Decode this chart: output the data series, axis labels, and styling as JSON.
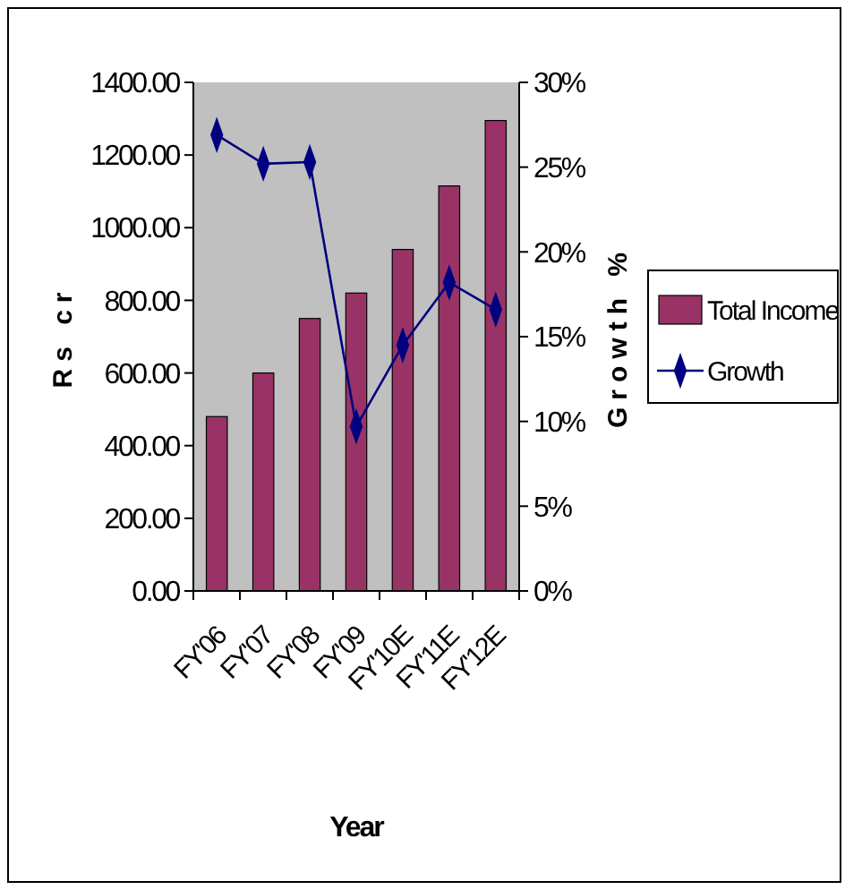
{
  "chart_data": {
    "type": "bar",
    "xlabel": "Year",
    "ylabel": "Rs cr",
    "y2label": "Growth %",
    "categories": [
      "FY'06",
      "FY'07",
      "FY'08",
      "FY'09",
      "FY'10E",
      "FY'11E",
      "FY'12E"
    ],
    "series": [
      {
        "name": "Total Income",
        "color": "#993366",
        "values": [
          480,
          600,
          750,
          820,
          940,
          1115,
          1295
        ]
      },
      {
        "name": "Growth",
        "type": "line",
        "axis": "y2",
        "color": "#000080",
        "marker": "diamond",
        "values": [
          26.9,
          25.2,
          25.3,
          9.7,
          14.5,
          18.2,
          16.6
        ]
      }
    ],
    "ylim": [
      0,
      1400
    ],
    "yticks": [
      {
        "value": 0,
        "label": "0.00"
      },
      {
        "value": 200,
        "label": "200.00"
      },
      {
        "value": 400,
        "label": "400.00"
      },
      {
        "value": 600,
        "label": "600.00"
      },
      {
        "value": 800,
        "label": "800.00"
      },
      {
        "value": 1000,
        "label": "1000.00"
      },
      {
        "value": 1200,
        "label": "1200.00"
      },
      {
        "value": 1400,
        "label": "1400.00"
      }
    ],
    "y2lim": [
      0,
      30
    ],
    "y2ticks": [
      {
        "value": 0,
        "label": "0%"
      },
      {
        "value": 5,
        "label": "5%"
      },
      {
        "value": 10,
        "label": "10%"
      },
      {
        "value": 15,
        "label": "15%"
      },
      {
        "value": 20,
        "label": "20%"
      },
      {
        "value": 25,
        "label": "25%"
      },
      {
        "value": 30,
        "label": "30%"
      }
    ],
    "grid": false,
    "legend": "right"
  }
}
